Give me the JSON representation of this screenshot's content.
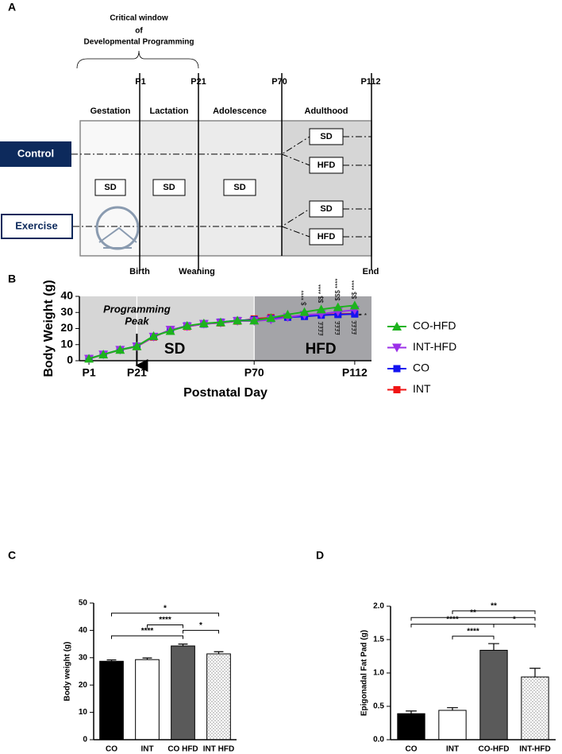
{
  "panel_labels": [
    "A",
    "B",
    "C",
    "D"
  ],
  "diagram": {
    "critical_window": [
      "Critical window",
      "of",
      "Developmental Programming"
    ],
    "timepoints": [
      "P1",
      "P21",
      "P70",
      "P112"
    ],
    "phases": [
      "Gestation",
      "Lactation",
      "Adolescence",
      "Adulthood"
    ],
    "groups": [
      "Control",
      "Exercise"
    ],
    "boxes": [
      "SD",
      "SD",
      "SD",
      "SD",
      "HFD",
      "SD",
      "HFD"
    ],
    "milestones": [
      "Birth",
      "Weaning",
      "End"
    ]
  },
  "chart_data": [
    {
      "type": "line",
      "x_label": "Postnatal Day",
      "y_label": "Body Weight (g)",
      "x": [
        1,
        7,
        14,
        21,
        28,
        35,
        42,
        49,
        56,
        63,
        70,
        77,
        84,
        91,
        98,
        105,
        112
      ],
      "xlim": [
        -3,
        119
      ],
      "xticks": [
        {
          "value": 1,
          "label": "P1"
        },
        {
          "value": 21,
          "label": "P21"
        },
        {
          "value": 70,
          "label": "P70"
        },
        {
          "value": 112,
          "label": "P112"
        }
      ],
      "ylim": [
        0,
        40
      ],
      "yticks": [
        0,
        10,
        20,
        30,
        40
      ],
      "shaded_regions": [
        {
          "start": -3,
          "end": 70,
          "color": "#d6d6d6",
          "label": "SD"
        },
        {
          "start": 70,
          "end": 119,
          "color": "#a4a4a8",
          "label": "HFD"
        }
      ],
      "dividers": [
        21,
        70
      ],
      "annotation": [
        "Programming",
        "Peak"
      ],
      "upper_marks": [
        "$ ****",
        "$$ ****",
        "$$$ ****",
        "$$ ****"
      ],
      "lower_marks": [
        "££££",
        "££££",
        "££££"
      ],
      "end_mark": "*",
      "series": [
        {
          "name": "CO-HFD",
          "color": "#1db31d",
          "marker": "triangle-up",
          "values": [
            1.3,
            3.9,
            6.8,
            9,
            15.4,
            18.5,
            21.7,
            23.2,
            23.9,
            25,
            25,
            26.6,
            28.7,
            30.3,
            31.9,
            33.3,
            34.4
          ]
        },
        {
          "name": "INT-HFD",
          "color": "#9b30e8",
          "marker": "triangle-down",
          "values": [
            1.2,
            3.8,
            6.7,
            8.8,
            14.9,
            19.2,
            21.3,
            22.9,
            23.6,
            24.7,
            24.7,
            25.5,
            27,
            28.5,
            29,
            30.5,
            31.5
          ]
        },
        {
          "name": "CO",
          "color": "#1414f0",
          "marker": "square",
          "values": [
            1.3,
            3.9,
            6.8,
            9,
            15,
            19,
            21.7,
            22.8,
            24,
            25,
            25.5,
            26.2,
            27,
            27.5,
            28.3,
            28.7,
            29
          ]
        },
        {
          "name": "INT",
          "color": "#f01414",
          "marker": "square",
          "values": [
            1.2,
            3.8,
            6.7,
            8.8,
            14.7,
            19.3,
            21.2,
            22.9,
            23.5,
            24.6,
            26,
            26.8,
            27.2,
            28.1,
            28.5,
            29,
            29.2
          ]
        }
      ]
    },
    {
      "type": "bar",
      "y_label": "Body weight (g)",
      "categories": [
        "CO",
        "INT",
        "CO HFD",
        "INT HFD"
      ],
      "values": [
        28.7,
        29.3,
        34.3,
        31.4
      ],
      "errors": [
        0.5,
        0.6,
        0.7,
        0.8
      ],
      "colors": [
        "#000000",
        "#ffffff",
        "#5a5a5a",
        "#ffffff"
      ],
      "hatch": [
        false,
        false,
        false,
        true
      ],
      "ylim": [
        0,
        50
      ],
      "yticks": [
        0,
        10,
        20,
        30,
        40,
        50
      ],
      "brackets": [
        {
          "from": "CO",
          "to": "INT HFD",
          "y": 46.3,
          "label": "*"
        },
        {
          "from": "INT",
          "to": "CO HFD",
          "y": 42,
          "label": "****"
        },
        {
          "from": "CO HFD",
          "to": "INT HFD",
          "y": 40,
          "label": "*"
        },
        {
          "from": "CO",
          "to": "CO HFD",
          "y": 38,
          "label": "****"
        }
      ]
    },
    {
      "type": "bar",
      "y_label": "Epigonadal Fat Pad (g)",
      "categories": [
        "CO",
        "INT",
        "CO-HFD",
        "INT-HFD"
      ],
      "values": [
        0.39,
        0.44,
        1.34,
        0.94
      ],
      "errors": [
        0.04,
        0.04,
        0.1,
        0.13
      ],
      "colors": [
        "#000000",
        "#ffffff",
        "#5a5a5a",
        "#ffffff"
      ],
      "hatch": [
        false,
        false,
        false,
        true
      ],
      "ylim": [
        0,
        2
      ],
      "yticks": [
        {
          "value": 0,
          "label": "0.0"
        },
        {
          "value": 0.5,
          "label": "0.5"
        },
        {
          "value": 1,
          "label": "1.0"
        },
        {
          "value": 1.5,
          "label": "1.5"
        },
        {
          "value": 2,
          "label": "2.0"
        }
      ],
      "brackets": [
        {
          "from": "INT",
          "to": "INT-HFD",
          "y": 1.93,
          "label": "**"
        },
        {
          "from": "CO",
          "to": "INT-HFD",
          "y": 1.83,
          "label": "**"
        },
        {
          "from": "CO",
          "to": "CO-HFD",
          "y": 1.73,
          "label": "****"
        },
        {
          "from": "CO-HFD",
          "to": "INT-HFD",
          "y": 1.73,
          "label": "*"
        },
        {
          "from": "INT",
          "to": "CO-HFD",
          "y": 1.55,
          "label": "****"
        }
      ]
    }
  ]
}
